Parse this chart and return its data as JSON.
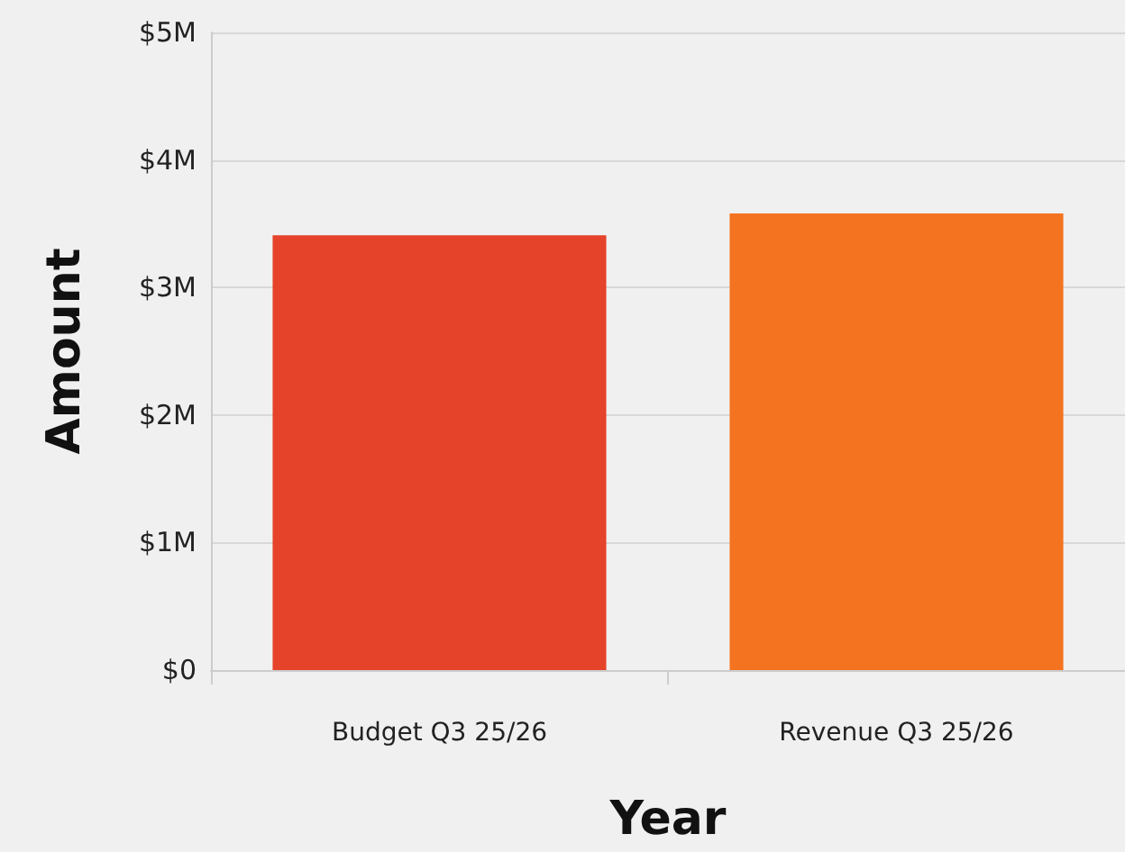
{
  "chart_data": {
    "type": "bar",
    "xlabel": "Year",
    "ylabel": "Amount",
    "categories": [
      "Budget Q3 25/26",
      "Revenue Q3 25/26"
    ],
    "values": [
      3410000,
      3580000
    ],
    "colors": [
      "#e5432a",
      "#f47321"
    ],
    "ylim": [
      0,
      5000000
    ],
    "yticks": [
      {
        "value": 0,
        "label": "$0"
      },
      {
        "value": 1000000,
        "label": "$1M"
      },
      {
        "value": 2000000,
        "label": "$2M"
      },
      {
        "value": 3000000,
        "label": "$3M"
      },
      {
        "value": 4000000,
        "label": "$4M"
      },
      {
        "value": 5000000,
        "label": "$5M"
      }
    ],
    "grid": "y"
  }
}
